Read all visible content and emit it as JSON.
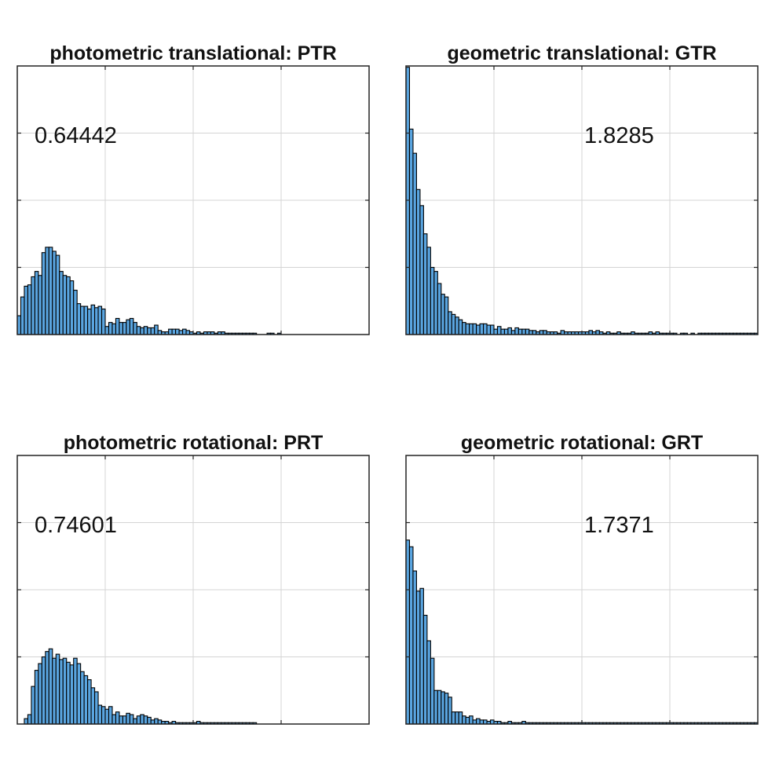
{
  "chart_data": [
    {
      "type": "bar",
      "title": "photometric translational: PTR",
      "annotation": "0.64442",
      "bar_color": "#5aa5e0",
      "edge_color": "#000000",
      "grid": true,
      "xlim": [
        0,
        4
      ],
      "ylim": [
        0,
        0.2
      ],
      "x": [
        0.02,
        0.06,
        0.1,
        0.14,
        0.18,
        0.22,
        0.26,
        0.3,
        0.34,
        0.38,
        0.42,
        0.46,
        0.5,
        0.54,
        0.58,
        0.62,
        0.66,
        0.7,
        0.74,
        0.78,
        0.82,
        0.86,
        0.9,
        0.94,
        0.98,
        1.02,
        1.06,
        1.1,
        1.14,
        1.18,
        1.22,
        1.26,
        1.3,
        1.34,
        1.38,
        1.42,
        1.46,
        1.5,
        1.54,
        1.58,
        1.62,
        1.66,
        1.7,
        1.74,
        1.78,
        1.82,
        1.86,
        1.9,
        1.94,
        1.98,
        2.02,
        2.06,
        2.1,
        2.14,
        2.18,
        2.22,
        2.26,
        2.3,
        2.34,
        2.38,
        2.42,
        2.46,
        2.5,
        2.54,
        2.58,
        2.62,
        2.66,
        2.7,
        2.74,
        2.78,
        2.82,
        2.86,
        2.9,
        2.94,
        2.98,
        3.02,
        3.06,
        3.1,
        3.14,
        3.18,
        3.22,
        3.26,
        3.3,
        3.34,
        3.38,
        3.42,
        3.46,
        3.5,
        3.54,
        3.58,
        3.62,
        3.66,
        3.7,
        3.74,
        3.78
      ],
      "values": [
        0.014,
        0.028,
        0.036,
        0.037,
        0.043,
        0.047,
        0.044,
        0.061,
        0.065,
        0.065,
        0.062,
        0.059,
        0.047,
        0.044,
        0.043,
        0.04,
        0.033,
        0.023,
        0.021,
        0.021,
        0.019,
        0.022,
        0.02,
        0.021,
        0.019,
        0.006,
        0.009,
        0.008,
        0.012,
        0.009,
        0.009,
        0.011,
        0.012,
        0.009,
        0.006,
        0.005,
        0.006,
        0.005,
        0.005,
        0.007,
        0.003,
        0.002,
        0.002,
        0.004,
        0.004,
        0.004,
        0.003,
        0.004,
        0.003,
        0.002,
        0.001,
        0.002,
        0.001,
        0.002,
        0.002,
        0.002,
        0.001,
        0.002,
        0.002,
        0.001,
        0.001,
        0.001,
        0.001,
        0.001,
        0.001,
        0.001,
        0.001,
        0.001,
        0,
        0,
        0,
        0.001,
        0.001,
        0,
        0.001,
        0,
        0,
        0,
        0,
        0,
        0,
        0,
        0,
        0,
        0,
        0,
        0,
        0,
        0,
        0,
        0,
        0,
        0,
        0,
        0
      ]
    },
    {
      "type": "bar",
      "title": "geometric translational: GTR",
      "annotation": "1.8285",
      "bar_color": "#5aa5e0",
      "edge_color": "#000000",
      "grid": true,
      "xlim": [
        0,
        4
      ],
      "ylim": [
        0,
        0.2
      ],
      "x": [
        0.02,
        0.06,
        0.1,
        0.14,
        0.18,
        0.22,
        0.26,
        0.3,
        0.34,
        0.38,
        0.42,
        0.46,
        0.5,
        0.54,
        0.58,
        0.62,
        0.66,
        0.7,
        0.74,
        0.78,
        0.82,
        0.86,
        0.9,
        0.94,
        0.98,
        1.02,
        1.06,
        1.1,
        1.14,
        1.18,
        1.22,
        1.26,
        1.3,
        1.34,
        1.38,
        1.42,
        1.46,
        1.5,
        1.54,
        1.58,
        1.62,
        1.66,
        1.7,
        1.74,
        1.78,
        1.82,
        1.86,
        1.9,
        1.94,
        1.98,
        2.02,
        2.06,
        2.1,
        2.14,
        2.18,
        2.22,
        2.26,
        2.3,
        2.34,
        2.38,
        2.42,
        2.46,
        2.5,
        2.54,
        2.58,
        2.62,
        2.66,
        2.7,
        2.74,
        2.78,
        2.82,
        2.86,
        2.9,
        2.94,
        2.98,
        3.02,
        3.06,
        3.1,
        3.14,
        3.18,
        3.22,
        3.26,
        3.3,
        3.34,
        3.38,
        3.42,
        3.46,
        3.5,
        3.54,
        3.58,
        3.62,
        3.66,
        3.7,
        3.74,
        3.78,
        3.82,
        3.86,
        3.9,
        3.94,
        3.98
      ],
      "values": [
        0.199,
        0.153,
        0.135,
        0.108,
        0.096,
        0.075,
        0.065,
        0.05,
        0.047,
        0.038,
        0.03,
        0.028,
        0.017,
        0.015,
        0.013,
        0.011,
        0.009,
        0.008,
        0.008,
        0.008,
        0.007,
        0.008,
        0.008,
        0.007,
        0.007,
        0.004,
        0.006,
        0.004,
        0.004,
        0.005,
        0.003,
        0.005,
        0.004,
        0.004,
        0.004,
        0.003,
        0.003,
        0.002,
        0.003,
        0.003,
        0.002,
        0.002,
        0.002,
        0.001,
        0.003,
        0.002,
        0.002,
        0.002,
        0.002,
        0.002,
        0.002,
        0.002,
        0.003,
        0.002,
        0.003,
        0.002,
        0.001,
        0.002,
        0.001,
        0.001,
        0.002,
        0.001,
        0.001,
        0.001,
        0.002,
        0.001,
        0.001,
        0.001,
        0.001,
        0.002,
        0.001,
        0.002,
        0.001,
        0.001,
        0.001,
        0.001,
        0.001,
        0,
        0.001,
        0.001,
        0,
        0.001,
        0,
        0.001,
        0.001,
        0.001,
        0.001,
        0.001,
        0.001,
        0.001,
        0.001,
        0.001,
        0.001,
        0.001,
        0.001,
        0.001,
        0.001,
        0.001,
        0.001,
        0.001
      ]
    },
    {
      "type": "bar",
      "title": "photometric rotational: PRT",
      "annotation": "0.74601",
      "bar_color": "#5aa5e0",
      "edge_color": "#000000",
      "grid": true,
      "xlim": [
        0,
        4
      ],
      "ylim": [
        0,
        0.2
      ],
      "x": [
        0.02,
        0.06,
        0.1,
        0.14,
        0.18,
        0.22,
        0.26,
        0.3,
        0.34,
        0.38,
        0.42,
        0.46,
        0.5,
        0.54,
        0.58,
        0.62,
        0.66,
        0.7,
        0.74,
        0.78,
        0.82,
        0.86,
        0.9,
        0.94,
        0.98,
        1.02,
        1.06,
        1.1,
        1.14,
        1.18,
        1.22,
        1.26,
        1.3,
        1.34,
        1.38,
        1.42,
        1.46,
        1.5,
        1.54,
        1.58,
        1.62,
        1.66,
        1.7,
        1.74,
        1.78,
        1.82,
        1.86,
        1.9,
        1.94,
        1.98,
        2.02,
        2.06,
        2.1,
        2.14,
        2.18,
        2.22,
        2.26,
        2.3,
        2.34,
        2.38,
        2.42,
        2.46,
        2.5,
        2.54,
        2.58,
        2.62,
        2.66,
        2.7,
        2.74,
        2.78,
        2.82,
        2.86,
        2.9,
        2.94,
        2.98,
        3.02,
        3.06,
        3.1,
        3.14,
        3.18,
        3.22,
        3.26,
        3.3,
        3.34,
        3.38,
        3.42,
        3.46,
        3.5,
        3.54,
        3.58,
        3.62,
        3.66,
        3.7,
        3.74,
        3.78
      ],
      "values": [
        0.0,
        0.0,
        0.004,
        0.007,
        0.028,
        0.04,
        0.045,
        0.05,
        0.054,
        0.056,
        0.049,
        0.052,
        0.048,
        0.049,
        0.046,
        0.044,
        0.049,
        0.045,
        0.039,
        0.036,
        0.033,
        0.027,
        0.024,
        0.014,
        0.013,
        0.011,
        0.013,
        0.007,
        0.009,
        0.006,
        0.006,
        0.008,
        0.007,
        0.004,
        0.006,
        0.007,
        0.006,
        0.005,
        0.003,
        0.004,
        0.003,
        0.002,
        0.002,
        0.001,
        0.002,
        0.001,
        0.001,
        0.001,
        0.001,
        0.001,
        0.001,
        0.002,
        0.001,
        0.001,
        0.001,
        0.001,
        0.001,
        0.001,
        0.001,
        0.001,
        0.001,
        0.001,
        0.001,
        0.001,
        0.001,
        0.001,
        0.001,
        0.001,
        0.0,
        0.0,
        0.0,
        0.0,
        0.0,
        0.0,
        0.0,
        0.0,
        0.0,
        0.0,
        0.0,
        0.0,
        0.0,
        0.0,
        0.0,
        0.0,
        0.0,
        0.0,
        0.0,
        0.0,
        0.0,
        0.0,
        0.0,
        0.0,
        0.0,
        0.0,
        0.0
      ]
    },
    {
      "type": "bar",
      "title": "geometric rotational: GRT",
      "annotation": "1.7371",
      "bar_color": "#5aa5e0",
      "edge_color": "#000000",
      "grid": true,
      "xlim": [
        0,
        4
      ],
      "ylim": [
        0,
        0.2
      ],
      "x": [
        0.02,
        0.06,
        0.1,
        0.14,
        0.18,
        0.22,
        0.26,
        0.3,
        0.34,
        0.38,
        0.42,
        0.46,
        0.5,
        0.54,
        0.58,
        0.62,
        0.66,
        0.7,
        0.74,
        0.78,
        0.82,
        0.86,
        0.9,
        0.94,
        0.98,
        1.02,
        1.06,
        1.1,
        1.14,
        1.18,
        1.22,
        1.26,
        1.3,
        1.34,
        1.38,
        1.42,
        1.46,
        1.5,
        1.54,
        1.58,
        1.62,
        1.66,
        1.7,
        1.74,
        1.78,
        1.82,
        1.86,
        1.9,
        1.94,
        1.98,
        2.02,
        2.06,
        2.1,
        2.14,
        2.18,
        2.22,
        2.26,
        2.3,
        2.34,
        2.38,
        2.42,
        2.46,
        2.5,
        2.54,
        2.58,
        2.62,
        2.66,
        2.7,
        2.74,
        2.78,
        2.82,
        2.86,
        2.9,
        2.94,
        2.98,
        3.02,
        3.06,
        3.1,
        3.14,
        3.18,
        3.22,
        3.26,
        3.3,
        3.34,
        3.38,
        3.42,
        3.46,
        3.5,
        3.54,
        3.58,
        3.62,
        3.66,
        3.7,
        3.74,
        3.78,
        3.82,
        3.86,
        3.9,
        3.94,
        3.98
      ],
      "values": [
        0.137,
        0.132,
        0.114,
        0.099,
        0.101,
        0.081,
        0.062,
        0.049,
        0.025,
        0.025,
        0.024,
        0.023,
        0.02,
        0.009,
        0.009,
        0.009,
        0.006,
        0.005,
        0.006,
        0.003,
        0.004,
        0.003,
        0.003,
        0.002,
        0.003,
        0.002,
        0.002,
        0.001,
        0.001,
        0.002,
        0.001,
        0.001,
        0.001,
        0.002,
        0.001,
        0.001,
        0.001,
        0.001,
        0.001,
        0.001,
        0.001,
        0.001,
        0.001,
        0.001,
        0.001,
        0.001,
        0.001,
        0.001,
        0.001,
        0.001,
        0.001,
        0.001,
        0.001,
        0.001,
        0.001,
        0.001,
        0.001,
        0.001,
        0.001,
        0.001,
        0.001,
        0.001,
        0.001,
        0.001,
        0.001,
        0.001,
        0.001,
        0.001,
        0.001,
        0.001,
        0.001,
        0.001,
        0.001,
        0.001,
        0.001,
        0.001,
        0.001,
        0.001,
        0.001,
        0.001,
        0.001,
        0.001,
        0.001,
        0.001,
        0.001,
        0.001,
        0.001,
        0.001,
        0.001,
        0.001,
        0.001,
        0.001,
        0.001,
        0.001,
        0.001,
        0.001,
        0.001,
        0.001,
        0.001,
        0.001
      ]
    }
  ]
}
